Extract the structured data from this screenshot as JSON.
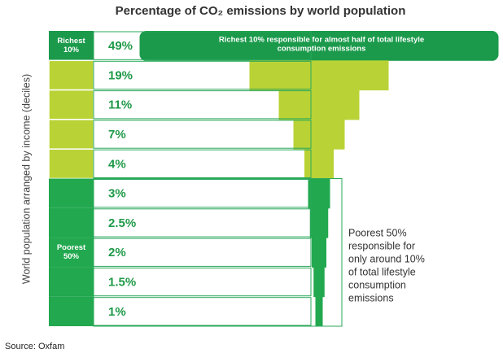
{
  "chart_data": {
    "type": "funnel",
    "title": "Percentage of CO₂ emissions by world population",
    "y_label": "World population arranged by income (deciles)",
    "categories": [
      "Richest 10%",
      null,
      null,
      null,
      null,
      null,
      null,
      "Poorest 50%",
      null,
      null
    ],
    "values": [
      49,
      19,
      11,
      7,
      4,
      3,
      2.5,
      2,
      1.5,
      1
    ],
    "value_labels": [
      "49%",
      "19%",
      "11%",
      "7%",
      "4%",
      "3%",
      "2.5%",
      "2%",
      "1.5%",
      "1%"
    ],
    "colors": [
      "#1b9a4b",
      "#b9d336",
      "#b9d336",
      "#b9d336",
      "#b9d336",
      "#22a84f",
      "#22a84f",
      "#22a84f",
      "#22a84f",
      "#22a84f"
    ],
    "annotations": [
      [
        "Richest 10% responsible for almost half of total lifestyle",
        "consumption emissions"
      ],
      [
        "Poorest 50%",
        "responsible for",
        "only around 10%",
        "of total lifestyle",
        "consumption",
        "emissions"
      ]
    ],
    "source": "Source: Oxfam"
  }
}
